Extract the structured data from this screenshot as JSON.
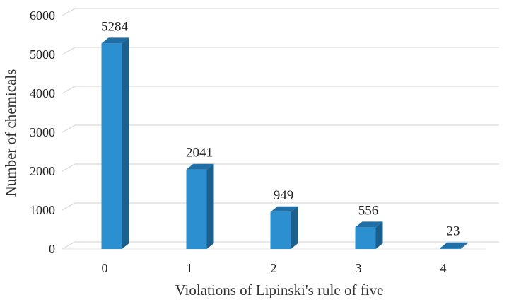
{
  "chart_data": {
    "type": "bar",
    "categories": [
      "0",
      "1",
      "2",
      "3",
      "4"
    ],
    "values": [
      5284,
      2041,
      949,
      556,
      23
    ],
    "data_labels": [
      "5284",
      "2041",
      "949",
      "556",
      "23"
    ],
    "xlabel": "Violations of Lipinski's rule of five",
    "ylabel": "Number of chemicals",
    "ylim": [
      0,
      6000
    ],
    "y_ticks": [
      "0",
      "1000",
      "2000",
      "3000",
      "4000",
      "5000",
      "6000"
    ],
    "grid": true,
    "style": "3d-column",
    "bar_color": "#2c8fcf"
  }
}
